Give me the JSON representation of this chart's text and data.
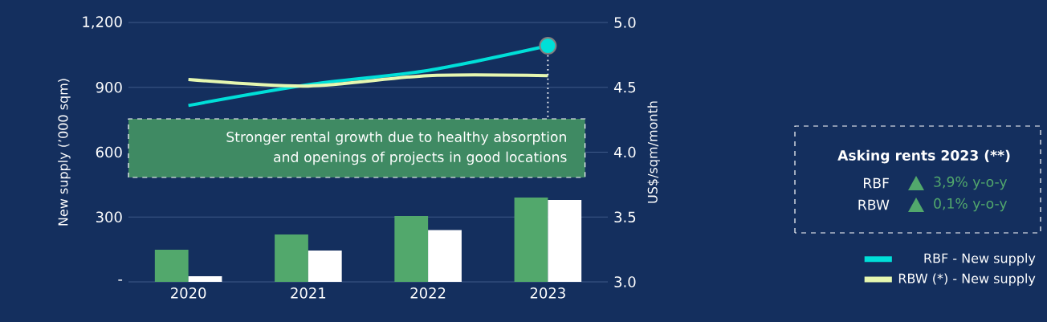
{
  "chart_data": {
    "type": "bar",
    "categories": [
      "2020",
      "2021",
      "2022",
      "2023"
    ],
    "series": [
      {
        "color": "#52a86c",
        "values": [
          149,
          219,
          305,
          390
        ]
      },
      {
        "color": "#ffffff",
        "values": [
          26,
          145,
          240,
          379
        ]
      },
      {
        "type": "line",
        "axis": "y2",
        "name": "RBF - New supply",
        "color": "#00dfd8",
        "values": [
          4.36,
          4.52,
          4.63,
          4.82
        ]
      },
      {
        "type": "line",
        "axis": "y2",
        "name": "RBW (*) - New supply",
        "color": "#e6f7b0",
        "values": [
          4.56,
          4.51,
          4.59,
          4.59
        ]
      }
    ],
    "ylabel": "New supply (’000 sqm)",
    "y2label": "US$/sqm/month",
    "ylim": [
      0,
      1200
    ],
    "yticks": [
      {
        "value": 0,
        "label": "-"
      },
      300,
      600,
      900,
      {
        "value": 1200,
        "label": "1,200"
      }
    ],
    "y2lim": [
      3,
      5
    ],
    "y2ticks": [
      {
        "value": 3,
        "label": "3.0"
      },
      {
        "value": 3.5,
        "label": "3.5"
      },
      {
        "value": 4,
        "label": "4.0"
      },
      {
        "value": 4.5,
        "label": "4.5"
      },
      {
        "value": 5,
        "label": "5.0"
      }
    ],
    "grid": "y",
    "legend": "right",
    "annotations": [
      {
        "text": "Stronger rental growth due to healthy absorption and openings of projects in good locations",
        "x": "2023",
        "y": 1092
      },
      "Asking rents 2023 (**)",
      "RBF",
      "3,9% y-o-y",
      "RBW",
      "0,1% y-o-y"
    ]
  }
}
